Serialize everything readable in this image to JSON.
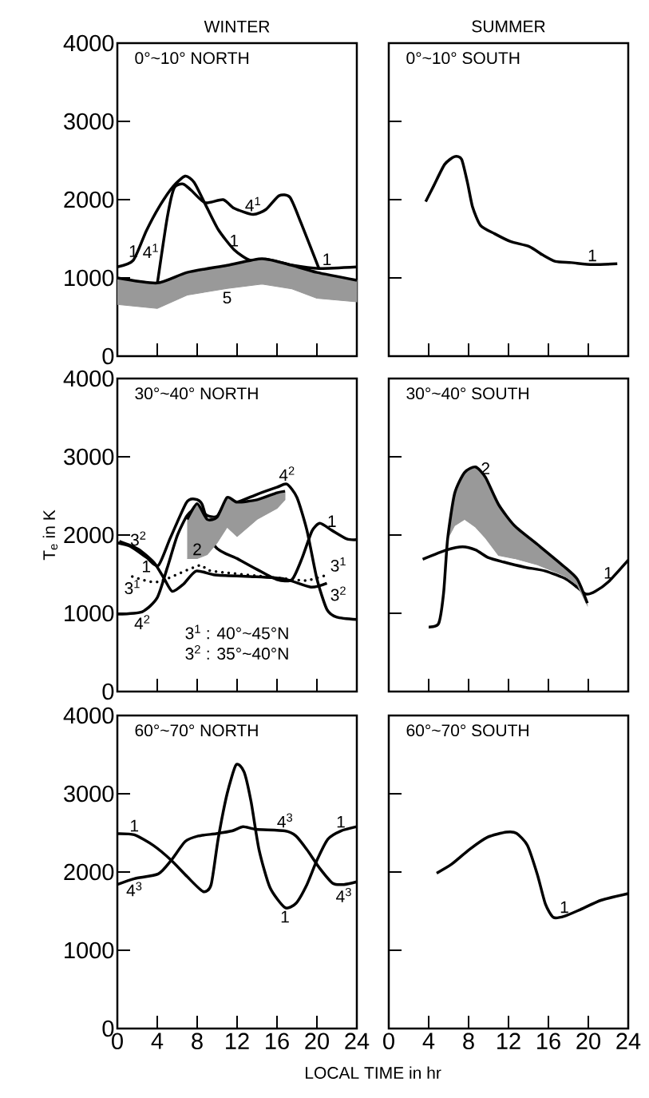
{
  "chart_data": [
    {
      "type": "line",
      "title": "0°~10° NORTH",
      "subtitle": "WINTER",
      "xlim": [
        0,
        24
      ],
      "ylim": [
        0,
        4000
      ],
      "xticks": [
        0,
        4,
        8,
        12,
        16,
        20,
        24
      ],
      "yticks": [
        0,
        1000,
        2000,
        3000,
        4000
      ],
      "tick_labels": "y",
      "series": [
        {
          "color": "#000000",
          "x": [
            0,
            1.6,
            2.9,
            4.2,
            5.6,
            6.8,
            7.7,
            8.8,
            10.1,
            11.7,
            13.3,
            14.9,
            17.6,
            20.2,
            24
          ],
          "values": [
            1140,
            1225,
            1600,
            1910,
            2170,
            2300,
            2220,
            1945,
            1620,
            1360,
            1225,
            1240,
            1160,
            1120,
            1140
          ]
        },
        {
          "color": "#000000",
          "x": [
            4,
            5,
            5.7,
            6.6,
            7.4,
            8.8,
            10.6,
            11.7,
            13.6,
            14.9,
            16.2,
            17.3,
            18.4,
            20.2
          ],
          "values": [
            920,
            1770,
            2150,
            2200,
            2120,
            1960,
            2000,
            1890,
            1810,
            1875,
            2050,
            2030,
            1705,
            1120
          ]
        },
        {
          "color": "#000000",
          "x": [
            0,
            4,
            7,
            11,
            14.5,
            17.5,
            20,
            24
          ],
          "values": [
            1000,
            935,
            1070,
            1160,
            1245,
            1160,
            1070,
            970
          ],
          "lower": [
            660,
            610,
            780,
            865,
            920,
            860,
            740,
            695
          ],
          "upper": [
            1000,
            935,
            1070,
            1160,
            1245,
            1160,
            1070,
            970
          ]
        }
      ],
      "annotations": [
        {
          "text": "1",
          "x": 1.6,
          "y": 1225
        },
        {
          "text": "4$^{1}$",
          "x": 4.5,
          "y": 1345
        },
        {
          "text": "1",
          "x": 11.7,
          "y": 1360
        },
        {
          "text": "4$^{1}$",
          "x": 13.6,
          "y": 1810
        },
        {
          "text": "1",
          "x": 20.2,
          "y": 1120
        },
        {
          "text": "5",
          "x": 11,
          "y": 865
        }
      ]
    },
    {
      "type": "line",
      "title": "0°~10° SOUTH",
      "subtitle": "SUMMER",
      "xlim": [
        0,
        24
      ],
      "ylim": [
        0,
        4000
      ],
      "xticks": [
        0,
        4,
        8,
        12,
        16,
        20,
        24
      ],
      "yticks": [
        0,
        1000,
        2000,
        3000,
        4000
      ],
      "tick_labels": false,
      "series": [
        {
          "color": "#000000",
          "x": [
            3.7,
            4.5,
            5.6,
            6.6,
            7.3,
            7.9,
            8.4,
            9.2,
            10.6,
            12.2,
            14.1,
            15.4,
            16.7,
            18.3,
            20.4,
            22.9
          ],
          "values": [
            1975,
            2175,
            2450,
            2550,
            2515,
            2210,
            1905,
            1670,
            1565,
            1465,
            1400,
            1295,
            1210,
            1195,
            1170,
            1180
          ]
        }
      ],
      "annotations": [
        {
          "text": "1",
          "x": 20.4,
          "y": 1170
        }
      ]
    },
    {
      "type": "line",
      "title": "30°~40° NORTH",
      "ylabel": "T$_{e}$ in K",
      "xlim": [
        0,
        24
      ],
      "ylim": [
        0,
        4000
      ],
      "xticks": [
        0,
        4,
        8,
        12,
        16,
        20,
        24
      ],
      "yticks": [
        0,
        1000,
        2000,
        3000,
        4000
      ],
      "tick_labels": "y",
      "series": [
        {
          "color": "#000000",
          "x": [
            0,
            1.3,
            2.9,
            4.1,
            5.3,
            6.9,
            7.7,
            8.5,
            9.8,
            12,
            14,
            16,
            17.5,
            18.5,
            19.5,
            20.3,
            21.5,
            23,
            24
          ],
          "values": [
            1900,
            1855,
            1715,
            1610,
            1960,
            2410,
            2460,
            2390,
            1855,
            1700,
            1560,
            1430,
            1430,
            1700,
            2050,
            2150,
            2060,
            1950,
            1940
          ]
        },
        {
          "color": "#000000",
          "x": [
            0,
            2.5,
            4,
            5,
            6,
            7,
            8,
            9,
            10,
            11,
            12,
            14,
            16,
            17,
            18,
            19,
            20,
            21,
            22,
            24
          ],
          "values": [
            990,
            1020,
            1200,
            1580,
            1990,
            2250,
            2350,
            2250,
            2240,
            2450,
            2420,
            2520,
            2610,
            2650,
            2480,
            2060,
            1440,
            1050,
            950,
            920
          ]
        },
        {
          "color": "#000000",
          "x": [
            0.2,
            2.1,
            3.7,
            4.7,
            5.5,
            6.6,
            7.9,
            9.8,
            13.3,
            16.7,
            19.4,
            21
          ],
          "values": [
            1920,
            1820,
            1645,
            1440,
            1280,
            1370,
            1540,
            1490,
            1470,
            1440,
            1335,
            1385
          ]
        },
        {
          "color": "#000000",
          "line_style": "dotted",
          "x": [
            1.5,
            4,
            8.2,
            9.5,
            17,
            19,
            21
          ],
          "values": [
            1470,
            1400,
            1610,
            1540,
            1440,
            1420,
            1490
          ]
        },
        {
          "color": "#000000",
          "x": [
            7,
            8,
            9,
            10,
            11,
            12,
            14,
            16,
            16.8
          ],
          "values": [
            2200,
            2400,
            2200,
            2230,
            2480,
            2420,
            2450,
            2540,
            2560
          ],
          "lower": [
            1700,
            1700,
            1750,
            1900,
            2100,
            1980,
            2200,
            2340,
            2450
          ],
          "upper": [
            2200,
            2400,
            2200,
            2230,
            2480,
            2420,
            2450,
            2540,
            2560
          ]
        }
      ],
      "annotations": [
        {
          "text": "3$^{2}$",
          "x": 2.1,
          "y": 1820
        },
        {
          "text": "1",
          "x": 2.9,
          "y": 1715
        },
        {
          "text": "3$^{1}$",
          "x": 1.5,
          "y": 1470
        },
        {
          "text": "4$^{2}$",
          "x": 2.5,
          "y": 1020
        },
        {
          "text": "2",
          "x": 8,
          "y": 1700
        },
        {
          "text": "4$^{2}$",
          "x": 17,
          "y": 2650
        },
        {
          "text": "1",
          "x": 21.5,
          "y": 2060
        },
        {
          "text": "3$^{1}$",
          "x": 21,
          "y": 1490
        },
        {
          "text": "3$^{2}$",
          "x": 21,
          "y": 1385
        },
        "3$^{1}$ : 40°~45°N",
        "3$^{2}$ : 35°~40°N"
      ]
    },
    {
      "type": "line",
      "title": "30°~40° SOUTH",
      "xlim": [
        0,
        24
      ],
      "ylim": [
        0,
        4000
      ],
      "xticks": [
        0,
        4,
        8,
        12,
        16,
        20,
        24
      ],
      "yticks": [
        0,
        1000,
        2000,
        3000,
        4000
      ],
      "tick_labels": false,
      "series": [
        {
          "color": "#000000",
          "x": [
            3.4,
            5.8,
            7.4,
            8.7,
            10,
            11.5,
            13.6,
            15.7,
            17.8,
            18.9,
            19.8,
            20.7,
            22,
            24
          ],
          "values": [
            1690,
            1810,
            1850,
            1810,
            1710,
            1655,
            1590,
            1540,
            1435,
            1330,
            1245,
            1280,
            1400,
            1680
          ]
        },
        {
          "color": "#000000",
          "x": [
            4,
            5,
            5.5,
            5.9,
            6.6,
            7.6,
            8.7,
            9.7,
            11,
            12.6,
            14.9,
            17.5,
            18.9,
            19.9
          ],
          "values": [
            825,
            870,
            1265,
            1950,
            2530,
            2800,
            2870,
            2735,
            2390,
            2120,
            1880,
            1605,
            1435,
            1130
          ],
          "lower": [
            null,
            null,
            null,
            1950,
            2120,
            2200,
            2100,
            1960,
            1740,
            1700,
            1620,
            1485,
            1360,
            1100
          ],
          "upper": [
            null,
            null,
            null,
            1950,
            2530,
            2800,
            2870,
            2735,
            2390,
            2120,
            1880,
            1605,
            1435,
            1130
          ]
        }
      ],
      "annotations": [
        {
          "text": "2",
          "x": 9.7,
          "y": 2735
        },
        {
          "text": "1",
          "x": 22,
          "y": 1400
        }
      ]
    },
    {
      "type": "line",
      "title": "60°~70° NORTH",
      "xlabel": "LOCAL TIME in hr",
      "xlim": [
        0,
        24
      ],
      "ylim": [
        0,
        4000
      ],
      "xticks": [
        0,
        4,
        8,
        12,
        16,
        20,
        24
      ],
      "yticks": [
        0,
        1000,
        2000,
        3000,
        4000
      ],
      "series": [
        {
          "color": "#000000",
          "x": [
            0,
            1.7,
            3.6,
            5.4,
            7,
            8.6,
            9.4,
            10.1,
            11,
            11.9,
            12.7,
            13.4,
            14.2,
            15.3,
            16.8,
            17.9,
            19,
            20,
            21.1,
            22.4,
            24
          ],
          "values": [
            2490,
            2475,
            2340,
            2150,
            1940,
            1750,
            1840,
            2420,
            3000,
            3370,
            3280,
            2900,
            2285,
            1800,
            1545,
            1600,
            1840,
            2150,
            2420,
            2525,
            2580
          ]
        },
        {
          "color": "#000000",
          "x": [
            0,
            1.7,
            4.1,
            5.4,
            6.8,
            8.1,
            9.9,
            11.5,
            12.6,
            13.9,
            16.8,
            17.9,
            19,
            20.3,
            21.6,
            22.7,
            24
          ],
          "values": [
            1840,
            1915,
            1975,
            2150,
            2390,
            2460,
            2490,
            2525,
            2580,
            2545,
            2525,
            2460,
            2285,
            2045,
            1855,
            1840,
            1875
          ]
        }
      ],
      "annotations": [
        {
          "text": "1",
          "x": 1.7,
          "y": 2475
        },
        {
          "text": "4$^{3}$",
          "x": 1.7,
          "y": 1915
        },
        {
          "text": "4$^{3}$",
          "x": 16.8,
          "y": 2525
        },
        {
          "text": "1",
          "x": 16.8,
          "y": 1545
        },
        {
          "text": "1",
          "x": 22.4,
          "y": 2525
        },
        {
          "text": "4$^{3}$",
          "x": 22.7,
          "y": 1840
        }
      ]
    },
    {
      "type": "line",
      "title": "60°~70° SOUTH",
      "xlim": [
        0,
        24
      ],
      "ylim": [
        0,
        4000
      ],
      "xticks": [
        0,
        4,
        8,
        12,
        16,
        20,
        24
      ],
      "yticks": [
        0,
        1000,
        2000,
        3000,
        4000
      ],
      "tick_labels": "x",
      "series": [
        {
          "color": "#000000",
          "x": [
            4.8,
            6.3,
            8.1,
            9.9,
            11.8,
            12.8,
            13.9,
            14.9,
            15.7,
            16.5,
            17.6,
            19.2,
            21.3,
            24
          ],
          "values": [
            1985,
            2100,
            2290,
            2445,
            2510,
            2495,
            2340,
            1965,
            1590,
            1420,
            1435,
            1520,
            1640,
            1725
          ]
        }
      ],
      "annotations": [
        {
          "text": "1",
          "x": 17.6,
          "y": 1435
        }
      ]
    }
  ]
}
